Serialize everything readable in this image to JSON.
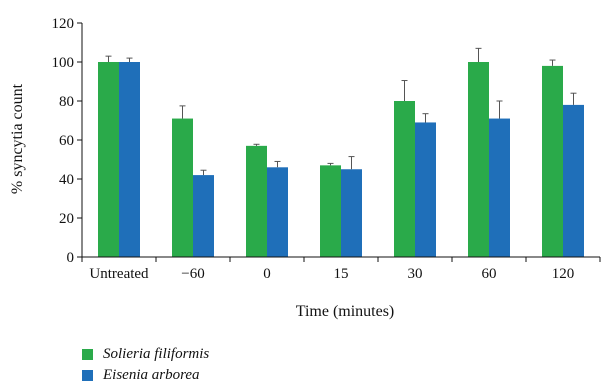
{
  "chart_data": {
    "type": "bar",
    "xlabel": "Time (minutes)",
    "ylabel": "% syncytia count",
    "ylim": [
      0,
      120
    ],
    "yticks": [
      0,
      20,
      40,
      60,
      80,
      100,
      120
    ],
    "categories": [
      "Untreated",
      "−60",
      "0",
      "15",
      "30",
      "60",
      "120"
    ],
    "series": [
      {
        "name": "Solieria filiformis",
        "color": "#2aaa4a",
        "values": [
          100,
          71,
          57,
          47,
          80,
          100,
          98
        ],
        "errors": [
          3,
          6.5,
          0.8,
          1,
          10.5,
          7,
          3
        ]
      },
      {
        "name": "Eisenia arborea",
        "color": "#1f6fb9",
        "values": [
          100,
          42,
          46,
          45,
          69,
          71,
          78
        ],
        "errors": [
          2,
          2.5,
          3,
          6.5,
          4.5,
          9,
          6
        ]
      }
    ],
    "legend_position": "bottom-left",
    "grid": false
  }
}
